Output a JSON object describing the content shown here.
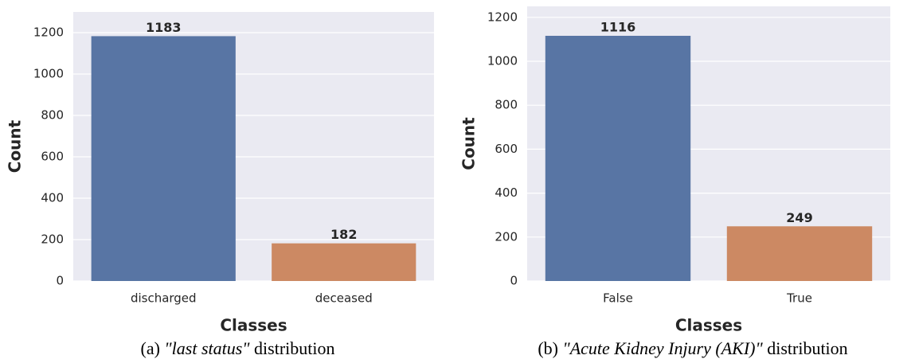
{
  "chart_data": [
    {
      "type": "bar",
      "categories": [
        "discharged",
        "deceased"
      ],
      "values": [
        1183,
        182
      ],
      "colors": [
        "#5875a4",
        "#cc8963"
      ],
      "ylim": [
        0,
        1300
      ],
      "yticks": [
        0,
        200,
        400,
        600,
        800,
        1000,
        1200
      ],
      "grid": true,
      "xlabel": "Classes",
      "ylabel": "Count",
      "caption": {
        "label": "(a)",
        "emphasis": "\"last status\"",
        "text": "distribution"
      }
    },
    {
      "type": "bar",
      "categories": [
        "False",
        "True"
      ],
      "values": [
        1116,
        249
      ],
      "colors": [
        "#5875a4",
        "#cc8963"
      ],
      "ylim": [
        0,
        1250
      ],
      "yticks": [
        0,
        200,
        400,
        600,
        800,
        1000,
        1200
      ],
      "grid": true,
      "xlabel": "Classes",
      "ylabel": "Count",
      "caption": {
        "label": "(b)",
        "emphasis": "\"Acute Kidney Injury (AKI)\"",
        "text": "distribution"
      }
    }
  ]
}
